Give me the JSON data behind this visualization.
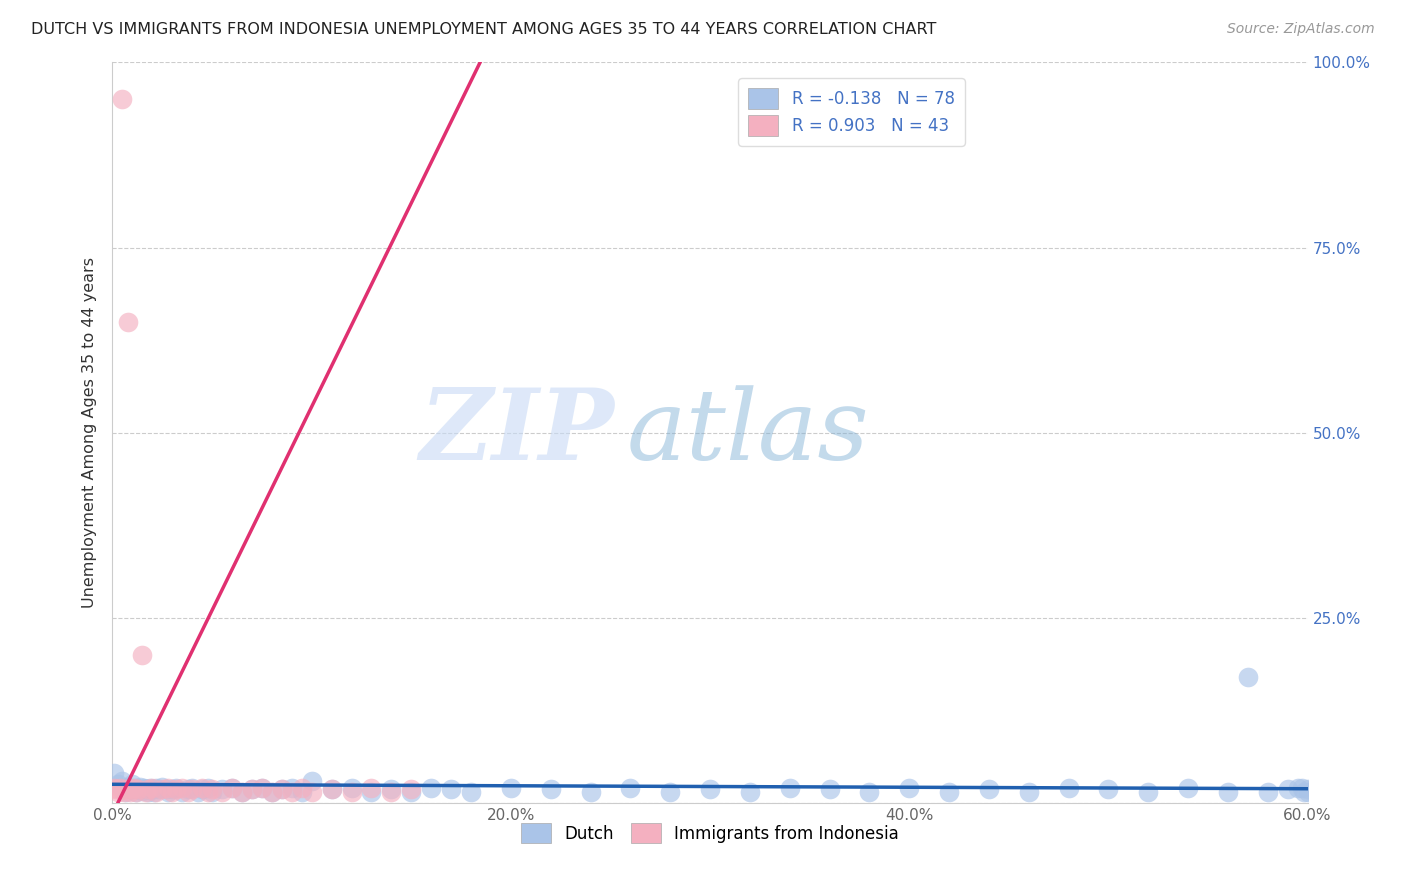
{
  "title": "DUTCH VS IMMIGRANTS FROM INDONESIA UNEMPLOYMENT AMONG AGES 35 TO 44 YEARS CORRELATION CHART",
  "source": "Source: ZipAtlas.com",
  "ylabel": "Unemployment Among Ages 35 to 44 years",
  "xlim": [
    0.0,
    0.6
  ],
  "ylim": [
    0.0,
    1.0
  ],
  "xticks": [
    0.0,
    0.1,
    0.2,
    0.3,
    0.4,
    0.5,
    0.6
  ],
  "xticklabels": [
    "0.0%",
    "",
    "20.0%",
    "",
    "40.0%",
    "",
    "60.0%"
  ],
  "yticks": [
    0.0,
    0.25,
    0.5,
    0.75,
    1.0
  ],
  "right_yticklabels": [
    "",
    "25.0%",
    "50.0%",
    "75.0%",
    "100.0%"
  ],
  "dutch_color": "#aac4e8",
  "dutch_line_color": "#2060b0",
  "indonesia_color": "#f4b0c0",
  "indonesia_line_color": "#e03070",
  "dutch_R": -0.138,
  "dutch_N": 78,
  "indonesia_R": 0.903,
  "indonesia_N": 43,
  "legend_label_dutch": "Dutch",
  "legend_label_indonesia": "Immigrants from Indonesia",
  "watermark_zip": "ZIP",
  "watermark_atlas": "atlas",
  "dutch_x": [
    0.001,
    0.003,
    0.005,
    0.006,
    0.007,
    0.008,
    0.009,
    0.01,
    0.011,
    0.012,
    0.013,
    0.014,
    0.015,
    0.016,
    0.017,
    0.018,
    0.019,
    0.02,
    0.021,
    0.022,
    0.023,
    0.025,
    0.027,
    0.028,
    0.03,
    0.032,
    0.035,
    0.038,
    0.04,
    0.043,
    0.045,
    0.048,
    0.05,
    0.055,
    0.06,
    0.065,
    0.07,
    0.075,
    0.08,
    0.085,
    0.09,
    0.095,
    0.1,
    0.11,
    0.12,
    0.13,
    0.14,
    0.15,
    0.16,
    0.17,
    0.18,
    0.2,
    0.22,
    0.24,
    0.26,
    0.28,
    0.3,
    0.32,
    0.34,
    0.36,
    0.38,
    0.4,
    0.42,
    0.44,
    0.46,
    0.48,
    0.5,
    0.52,
    0.54,
    0.56,
    0.57,
    0.58,
    0.59,
    0.595,
    0.6,
    0.6,
    0.598,
    0.597
  ],
  "dutch_y": [
    0.04,
    0.025,
    0.03,
    0.02,
    0.015,
    0.022,
    0.018,
    0.025,
    0.02,
    0.015,
    0.018,
    0.022,
    0.016,
    0.02,
    0.018,
    0.015,
    0.02,
    0.018,
    0.015,
    0.02,
    0.018,
    0.022,
    0.018,
    0.015,
    0.018,
    0.02,
    0.015,
    0.018,
    0.02,
    0.015,
    0.018,
    0.02,
    0.015,
    0.018,
    0.02,
    0.015,
    0.018,
    0.02,
    0.015,
    0.018,
    0.02,
    0.015,
    0.03,
    0.018,
    0.02,
    0.015,
    0.018,
    0.015,
    0.02,
    0.018,
    0.015,
    0.02,
    0.018,
    0.015,
    0.02,
    0.015,
    0.018,
    0.015,
    0.02,
    0.018,
    0.015,
    0.02,
    0.015,
    0.018,
    0.015,
    0.02,
    0.018,
    0.015,
    0.02,
    0.015,
    0.17,
    0.015,
    0.018,
    0.02,
    0.015,
    0.018,
    0.015,
    0.02
  ],
  "indonesia_x": [
    0.001,
    0.002,
    0.003,
    0.004,
    0.005,
    0.006,
    0.007,
    0.008,
    0.009,
    0.01,
    0.011,
    0.012,
    0.013,
    0.015,
    0.017,
    0.018,
    0.02,
    0.022,
    0.025,
    0.028,
    0.03,
    0.032,
    0.035,
    0.038,
    0.04,
    0.045,
    0.048,
    0.05,
    0.055,
    0.06,
    0.065,
    0.07,
    0.075,
    0.08,
    0.085,
    0.09,
    0.095,
    0.1,
    0.11,
    0.12,
    0.13,
    0.14,
    0.15
  ],
  "indonesia_y": [
    0.02,
    0.018,
    0.015,
    0.02,
    0.95,
    0.015,
    0.018,
    0.65,
    0.015,
    0.018,
    0.02,
    0.015,
    0.018,
    0.2,
    0.015,
    0.018,
    0.02,
    0.015,
    0.018,
    0.02,
    0.015,
    0.018,
    0.02,
    0.015,
    0.018,
    0.02,
    0.015,
    0.018,
    0.015,
    0.02,
    0.015,
    0.018,
    0.02,
    0.015,
    0.018,
    0.015,
    0.02,
    0.015,
    0.018,
    0.015,
    0.02,
    0.015,
    0.018
  ]
}
